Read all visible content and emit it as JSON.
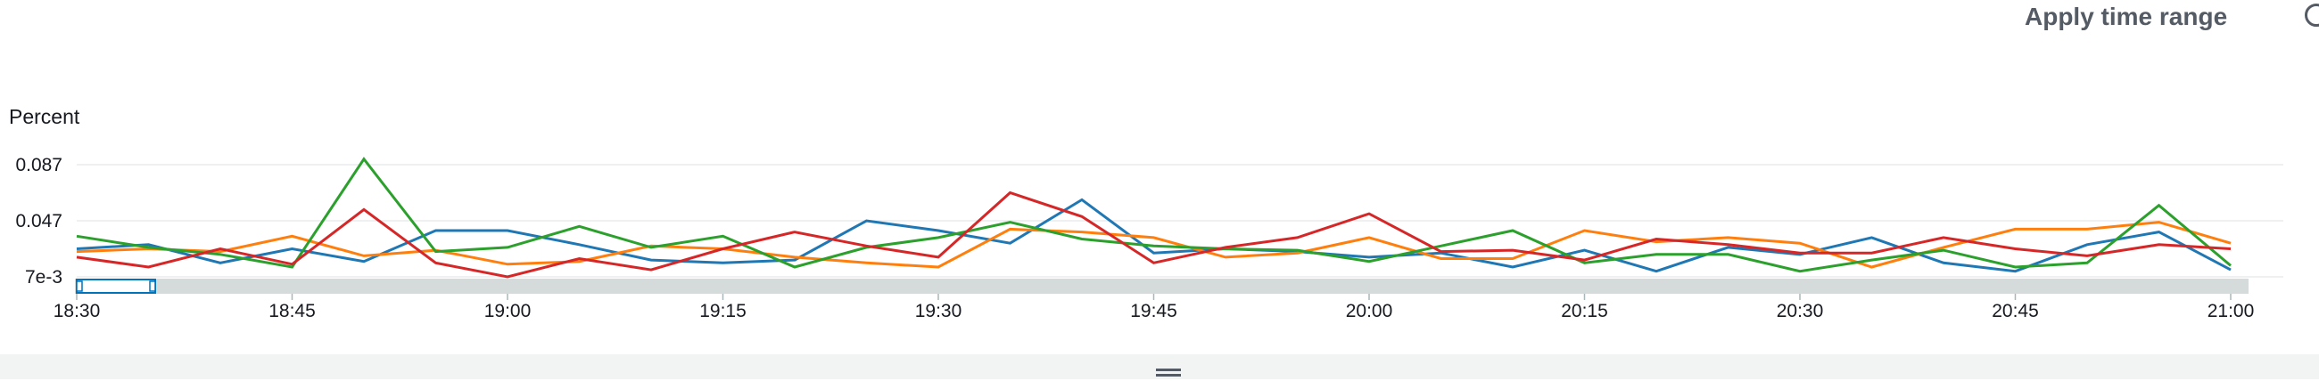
{
  "toolbar": {
    "apply_label": "Apply time range",
    "corner_icon": "zoom-icon"
  },
  "colors": {
    "blue": "#1f77b4",
    "orange": "#ff7f0e",
    "green": "#2ca02c",
    "red": "#d62728",
    "grid": "#e9ebed",
    "axis": "#aab7b8",
    "scrubber": "#0073bb"
  },
  "chart_data": {
    "type": "line",
    "ylabel": "Percent",
    "y_ticks": [
      "0.087",
      "0.047",
      "7e-3"
    ],
    "y_tick_values": [
      0.087,
      0.047,
      0.007
    ],
    "ylim": [
      0.007,
      0.087
    ],
    "x_ticks": [
      "18:30",
      "18:45",
      "19:00",
      "19:15",
      "19:30",
      "19:45",
      "20:00",
      "20:15",
      "20:30",
      "20:45",
      "21:00"
    ],
    "x": [
      "18:30",
      "18:35",
      "18:40",
      "18:45",
      "18:50",
      "18:55",
      "19:00",
      "19:05",
      "19:10",
      "19:15",
      "19:20",
      "19:25",
      "19:30",
      "19:35",
      "19:40",
      "19:45",
      "19:50",
      "19:55",
      "20:00",
      "20:05",
      "20:10",
      "20:15",
      "20:20",
      "20:25",
      "20:30",
      "20:35",
      "20:40",
      "20:45",
      "20:50",
      "20:55",
      "21:00"
    ],
    "grid": true,
    "legend": "none",
    "series": [
      {
        "color": "blue",
        "values": [
          0.027,
          0.03,
          0.017,
          0.027,
          0.018,
          0.04,
          0.04,
          0.03,
          0.019,
          0.017,
          0.019,
          0.047,
          0.04,
          0.031,
          0.062,
          0.024,
          0.027,
          0.025,
          0.021,
          0.024,
          0.014,
          0.026,
          0.011,
          0.028,
          0.023,
          0.035,
          0.017,
          0.011,
          0.03,
          0.039,
          0.012
        ]
      },
      {
        "color": "orange",
        "values": [
          0.025,
          0.027,
          0.025,
          0.036,
          0.022,
          0.026,
          0.016,
          0.018,
          0.029,
          0.027,
          0.021,
          0.017,
          0.014,
          0.041,
          0.039,
          0.035,
          0.021,
          0.024,
          0.035,
          0.02,
          0.02,
          0.04,
          0.032,
          0.035,
          0.031,
          0.014,
          0.028,
          0.041,
          0.041,
          0.046,
          0.031
        ]
      },
      {
        "color": "green",
        "values": [
          0.036,
          0.028,
          0.023,
          0.014,
          0.091,
          0.025,
          0.028,
          0.043,
          0.028,
          0.036,
          0.014,
          0.028,
          0.035,
          0.046,
          0.034,
          0.029,
          0.027,
          0.026,
          0.018,
          0.029,
          0.04,
          0.017,
          0.023,
          0.023,
          0.011,
          0.019,
          0.026,
          0.014,
          0.017,
          0.058,
          0.015
        ]
      },
      {
        "color": "red",
        "values": [
          0.021,
          0.014,
          0.027,
          0.016,
          0.055,
          0.017,
          0.007,
          0.02,
          0.012,
          0.027,
          0.039,
          0.029,
          0.021,
          0.067,
          0.05,
          0.017,
          0.028,
          0.035,
          0.052,
          0.025,
          0.026,
          0.019,
          0.034,
          0.03,
          0.024,
          0.024,
          0.035,
          0.027,
          0.022,
          0.03,
          0.027
        ]
      }
    ]
  }
}
